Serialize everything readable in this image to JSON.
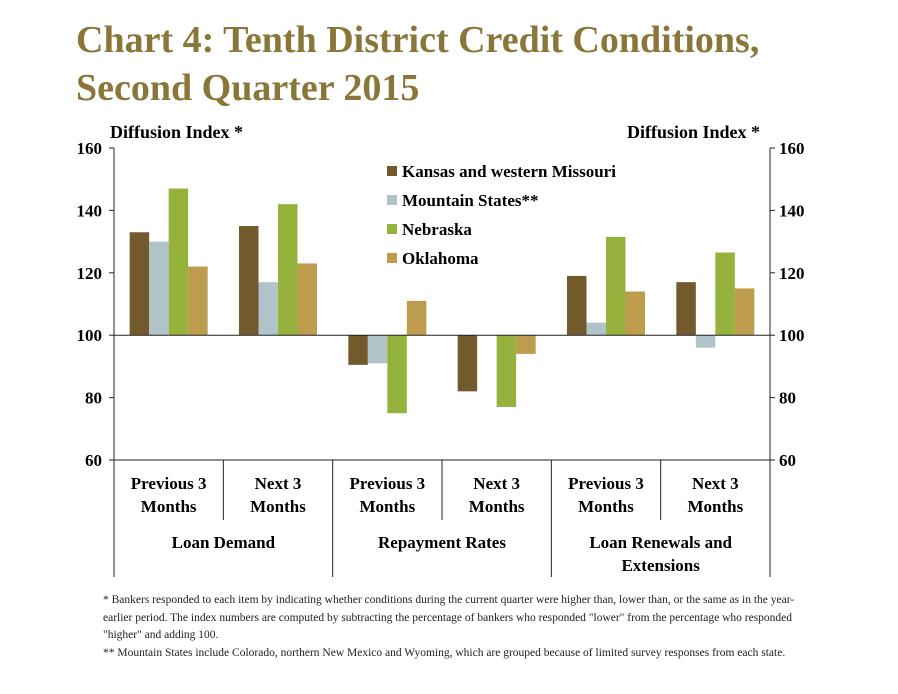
{
  "title_lines": [
    "Chart 4: Tenth District Credit Conditions,",
    "Second Quarter 2015"
  ],
  "chart_data": {
    "type": "bar",
    "ylabel_left": "Diffusion Index *",
    "ylabel_right": "Diffusion Index *",
    "ylim": [
      60,
      160
    ],
    "yticks": [
      60,
      80,
      100,
      120,
      140,
      160
    ],
    "baseline": 100,
    "categories": [
      {
        "line1": "Previous 3",
        "line2": "Months"
      },
      {
        "line1": "Next 3",
        "line2": "Months"
      },
      {
        "line1": "Previous 3",
        "line2": "Months"
      },
      {
        "line1": "Next 3",
        "line2": "Months"
      },
      {
        "line1": "Previous 3",
        "line2": "Months"
      },
      {
        "line1": "Next 3",
        "line2": "Months"
      }
    ],
    "groups": [
      {
        "lines": [
          "Loan Demand"
        ]
      },
      {
        "lines": [
          "Repayment Rates"
        ]
      },
      {
        "lines": [
          "Loan Renewals and",
          "Extensions"
        ]
      }
    ],
    "series": [
      {
        "name": "Kansas and western Missouri",
        "color": "#735a2c",
        "values": [
          133,
          135,
          90.5,
          82,
          119,
          117
        ]
      },
      {
        "name": "Mountain States**",
        "color": "#afc3c9",
        "values": [
          130,
          117,
          91,
          100,
          104,
          96
        ]
      },
      {
        "name": "Nebraska",
        "color": "#95b23c",
        "values": [
          147,
          142,
          75,
          77,
          131.5,
          126.5
        ]
      },
      {
        "name": "Oklahoma",
        "color": "#bd9c4e",
        "values": [
          122,
          123,
          111,
          94,
          114,
          115
        ]
      }
    ],
    "grid": false,
    "legend_position": "top-center"
  },
  "footnotes": [
    "* Bankers responded to each item by indicating whether conditions during the current quarter were higher than, lower than, or the same as in the year-earlier period.  The index numbers are computed by subtracting the percentage of bankers who responded \"lower\" from the percentage who responded \"higher\" and adding 100.",
    "** Mountain States include Colorado, northern New Mexico and Wyoming, which are grouped because of limited survey responses from each state."
  ]
}
